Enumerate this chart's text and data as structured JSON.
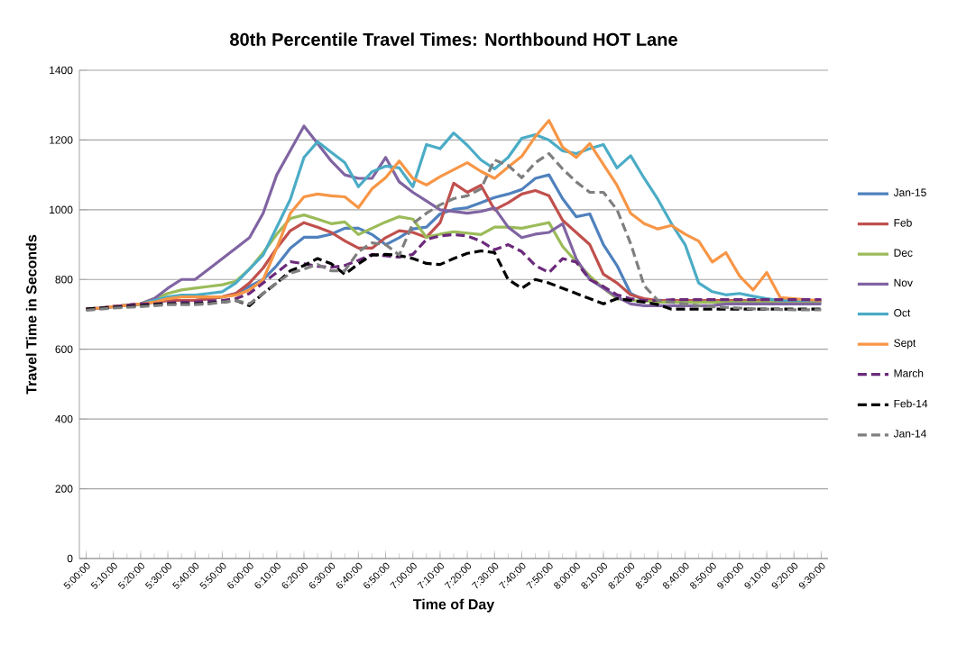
{
  "chart_data": {
    "type": "line",
    "title": "80th Percentile Travel Times: Northbound HOT Lane",
    "xlabel": "Time of Day",
    "ylabel": "Travel Time in Seconds",
    "categories": [
      "5:00:00",
      null,
      "5:10:00",
      null,
      "5:20:00",
      null,
      "5:30:00",
      null,
      "5:40:00",
      null,
      "5:50:00",
      null,
      "6:00:00",
      null,
      "6:10:00",
      null,
      "6:20:00",
      null,
      "6:30:00",
      null,
      "6:40:00",
      null,
      "6:50:00",
      null,
      "7:00:00",
      null,
      "7:10:00",
      null,
      "7:20:00",
      null,
      "7:30:00",
      null,
      "7:40:00",
      null,
      "7:50:00",
      null,
      "8:00:00",
      null,
      "8:10:00",
      null,
      "8:20:00",
      null,
      "8:30:00",
      null,
      "8:40:00",
      null,
      "8:50:00",
      null,
      "9:00:00",
      null,
      "9:10:00",
      null,
      "9:20:00",
      null,
      "9:30:00"
    ],
    "ylim": [
      0,
      1400
    ],
    "yticks": [
      0,
      200,
      400,
      600,
      800,
      1000,
      1200,
      1400
    ],
    "grid": "y",
    "legend": "right",
    "marker": "none",
    "series": [
      {
        "name": "Jan-15",
        "color": "#4f81bd",
        "line_style": "solid",
        "values": [
          null,
          null,
          null,
          726,
          730,
          735,
          740,
          740,
          740,
          745,
          750,
          760,
          780,
          800,
          840,
          890,
          921,
          921,
          930,
          947,
          947,
          929,
          900,
          920,
          945,
          950,
          988,
          1001,
          1006,
          1020,
          1035,
          1045,
          1058,
          1090,
          1100,
          1032,
          980,
          988,
          900,
          840,
          760,
          740,
          740,
          740,
          738,
          735,
          735,
          735,
          735,
          735,
          735,
          735,
          735,
          735,
          735
        ]
      },
      {
        "name": "Feb",
        "color": "#c0504d",
        "line_style": "solid",
        "values": [
          715,
          718,
          722,
          726,
          730,
          735,
          740,
          740,
          740,
          745,
          750,
          760,
          790,
          833,
          890,
          940,
          963,
          950,
          935,
          911,
          890,
          890,
          920,
          940,
          935,
          921,
          963,
          1076,
          1050,
          1070,
          1000,
          1020,
          1045,
          1055,
          1040,
          970,
          935,
          900,
          815,
          790,
          756,
          745,
          740,
          740,
          740,
          740,
          740,
          740,
          740,
          740,
          740,
          740,
          740,
          740,
          740
        ]
      },
      {
        "name": "Dec",
        "color": "#9bbb59",
        "line_style": "solid",
        "values": [
          null,
          null,
          722,
          726,
          730,
          745,
          760,
          770,
          775,
          780,
          785,
          795,
          830,
          877,
          930,
          975,
          985,
          973,
          960,
          965,
          929,
          947,
          965,
          980,
          973,
          921,
          930,
          937,
          933,
          929,
          950,
          950,
          947,
          955,
          963,
          895,
          851,
          810,
          775,
          745,
          740,
          738,
          735,
          735,
          735,
          735,
          735,
          735,
          735,
          735,
          735,
          735,
          735,
          735,
          735
        ]
      },
      {
        "name": "Nov",
        "color": "#8064a2",
        "line_style": "solid",
        "values": [
          715,
          718,
          722,
          726,
          730,
          745,
          775,
          800,
          800,
          830,
          860,
          890,
          920,
          990,
          1100,
          1170,
          1240,
          1190,
          1140,
          1100,
          1090,
          1090,
          1150,
          1080,
          1050,
          1025,
          1000,
          995,
          990,
          995,
          1005,
          950,
          920,
          930,
          935,
          960,
          860,
          800,
          775,
          750,
          730,
          725,
          725,
          725,
          725,
          725,
          725,
          730,
          730,
          730,
          730,
          730,
          730,
          730,
          730
        ]
      },
      {
        "name": "Oct",
        "color": "#4bacc6",
        "line_style": "solid",
        "values": [
          null,
          null,
          null,
          726,
          730,
          740,
          750,
          755,
          755,
          760,
          765,
          790,
          830,
          870,
          950,
          1030,
          1150,
          1195,
          1165,
          1135,
          1066,
          1109,
          1125,
          1120,
          1066,
          1187,
          1175,
          1220,
          1185,
          1143,
          1117,
          1150,
          1205,
          1215,
          1200,
          1169,
          1161,
          1175,
          1187,
          1120,
          1155,
          1090,
          1030,
          960,
          900,
          790,
          765,
          756,
          760,
          752,
          745,
          740,
          740,
          740,
          740
        ]
      },
      {
        "name": "Sept",
        "color": "#f79646",
        "line_style": "solid",
        "values": [
          715,
          718,
          722,
          726,
          730,
          735,
          745,
          750,
          750,
          750,
          750,
          755,
          770,
          800,
          890,
          990,
          1037,
          1045,
          1040,
          1037,
          1006,
          1060,
          1092,
          1140,
          1090,
          1071,
          1095,
          1115,
          1135,
          1110,
          1090,
          1122,
          1153,
          1210,
          1256,
          1180,
          1150,
          1190,
          1130,
          1070,
          990,
          960,
          945,
          955,
          930,
          910,
          850,
          877,
          810,
          770,
          820,
          748,
          745,
          742,
          740
        ]
      },
      {
        "name": "March",
        "color": "#6b2a7a",
        "line_style": "dashed",
        "values": [
          715,
          718,
          722,
          726,
          730,
          730,
          732,
          735,
          735,
          738,
          740,
          745,
          760,
          790,
          820,
          851,
          845,
          838,
          835,
          840,
          855,
          872,
          868,
          864,
          872,
          915,
          925,
          929,
          925,
          910,
          885,
          900,
          880,
          840,
          820,
          860,
          850,
          800,
          780,
          756,
          745,
          740,
          740,
          742,
          742,
          742,
          742,
          742,
          742,
          742,
          742,
          742,
          742,
          742,
          742
        ]
      },
      {
        "name": "Feb-14",
        "color": "#000000",
        "line_style": "dashed",
        "values": [
          715,
          718,
          720,
          722,
          725,
          728,
          730,
          730,
          730,
          732,
          735,
          740,
          725,
          760,
          790,
          825,
          840,
          860,
          845,
          815,
          845,
          870,
          872,
          869,
          860,
          846,
          843,
          860,
          875,
          882,
          877,
          800,
          775,
          800,
          790,
          775,
          760,
          745,
          730,
          745,
          740,
          735,
          728,
          715,
          715,
          715,
          715,
          715,
          715,
          715,
          715,
          715,
          715,
          715,
          715
        ]
      },
      {
        "name": "Jan-14",
        "color": "#7f7f7f",
        "line_style": "dashed",
        "values": [
          712,
          715,
          718,
          720,
          722,
          725,
          728,
          728,
          728,
          730,
          735,
          740,
          730,
          760,
          790,
          818,
          830,
          843,
          825,
          825,
          880,
          905,
          900,
          870,
          960,
          990,
          1014,
          1032,
          1040,
          1060,
          1143,
          1127,
          1092,
          1135,
          1161,
          1117,
          1080,
          1050,
          1050,
          1000,
          903,
          782,
          740,
          735,
          730,
          725,
          722,
          720,
          718,
          716,
          715,
          714,
          713,
          713,
          713
        ]
      }
    ]
  }
}
